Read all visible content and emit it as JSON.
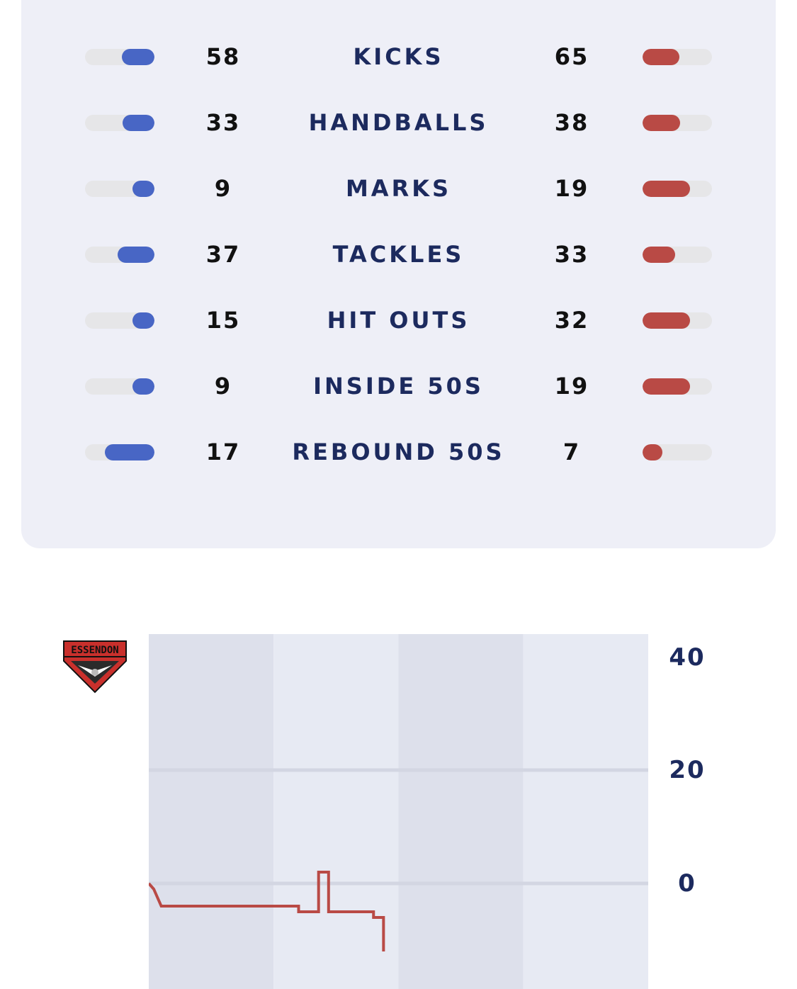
{
  "colors": {
    "home": "#4866c5",
    "away": "#b94a45",
    "label": "#1c2a5e",
    "card_bg": "#eeeff7"
  },
  "stats": [
    {
      "label": "KICKS",
      "home": 58,
      "away": 65,
      "home_share": 0.47,
      "away_share": 0.53
    },
    {
      "label": "HANDBALLS",
      "home": 33,
      "away": 38,
      "home_share": 0.46,
      "away_share": 0.54
    },
    {
      "label": "MARKS",
      "home": 9,
      "away": 19,
      "home_share": 0.32,
      "away_share": 0.68
    },
    {
      "label": "TACKLES",
      "home": 37,
      "away": 33,
      "home_share": 0.53,
      "away_share": 0.47
    },
    {
      "label": "HIT OUTS",
      "home": 15,
      "away": 32,
      "home_share": 0.32,
      "away_share": 0.68
    },
    {
      "label": "INSIDE 50S",
      "home": 9,
      "away": 19,
      "home_share": 0.32,
      "away_share": 0.68
    },
    {
      "label": "REBOUND 50S",
      "home": 17,
      "away": 7,
      "home_share": 0.71,
      "away_share": 0.29
    }
  ],
  "worm_chart": {
    "team_logo_text": "ESSENDON",
    "logo_icon": "essendon-bomber-shield-icon",
    "chart_data": {
      "type": "line",
      "y_ticks": [
        "40",
        "20",
        "0"
      ],
      "ylim": [
        -20,
        45
      ],
      "x_quarters": 4,
      "grid": true,
      "series": [
        {
          "color": "#b94a45",
          "points": [
            [
              0,
              0
            ],
            [
              0.01,
              -1
            ],
            [
              0.015,
              -2
            ],
            [
              0.02,
              -3
            ],
            [
              0.025,
              -4
            ],
            [
              0.3,
              -4
            ],
            [
              0.3,
              -5
            ],
            [
              0.34,
              -5
            ],
            [
              0.34,
              2
            ],
            [
              0.36,
              2
            ],
            [
              0.36,
              -5
            ],
            [
              0.45,
              -5
            ],
            [
              0.45,
              -6
            ],
            [
              0.47,
              -6
            ],
            [
              0.47,
              -12
            ]
          ]
        }
      ]
    }
  }
}
